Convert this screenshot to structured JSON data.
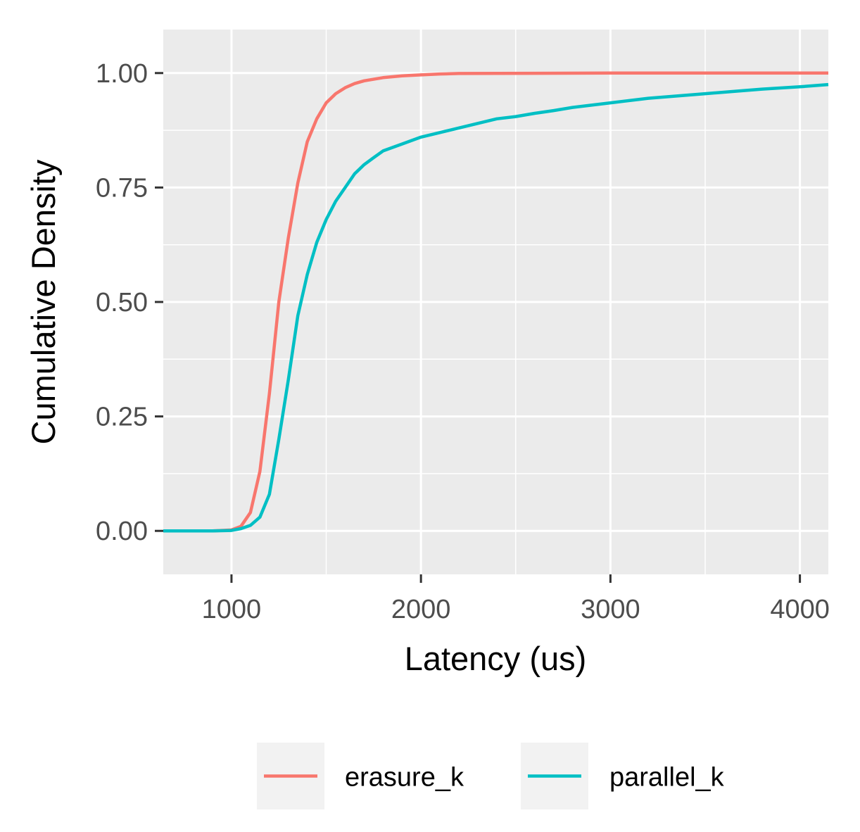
{
  "chart_data": {
    "type": "line",
    "title": "",
    "xlabel": "Latency (us)",
    "ylabel": "Cumulative Density",
    "xlim": [
      640,
      4150
    ],
    "ylim": [
      -0.095,
      1.095
    ],
    "x_ticks": [
      1000,
      2000,
      3000,
      4000
    ],
    "x_tick_labels": [
      "1000",
      "2000",
      "3000",
      "4000"
    ],
    "y_ticks": [
      0,
      0.25,
      0.5,
      0.75,
      1.0
    ],
    "y_tick_labels": [
      "0.00",
      "0.25",
      "0.50",
      "0.75",
      "1.00"
    ],
    "grid": true,
    "legend_position": "bottom",
    "colors": {
      "panel_background": "#ebebeb",
      "grid": "#ffffff",
      "tick_mark": "#333333"
    },
    "series": [
      {
        "name": "erasure_k",
        "color": "#f8766d",
        "x": [
          640,
          900,
          1000,
          1050,
          1100,
          1150,
          1200,
          1250,
          1300,
          1350,
          1400,
          1450,
          1500,
          1550,
          1600,
          1650,
          1700,
          1800,
          1900,
          2000,
          2100,
          2200,
          3000,
          4150
        ],
        "y": [
          0.0,
          0.0,
          0.002,
          0.01,
          0.04,
          0.13,
          0.3,
          0.5,
          0.64,
          0.76,
          0.85,
          0.9,
          0.935,
          0.955,
          0.968,
          0.977,
          0.983,
          0.99,
          0.994,
          0.996,
          0.998,
          0.999,
          1.0,
          1.0
        ]
      },
      {
        "name": "parallel_k",
        "color": "#00bfc4",
        "x": [
          640,
          900,
          1000,
          1050,
          1100,
          1150,
          1200,
          1250,
          1300,
          1350,
          1400,
          1450,
          1500,
          1550,
          1600,
          1650,
          1700,
          1750,
          1800,
          1900,
          2000,
          2100,
          2200,
          2300,
          2400,
          2500,
          2600,
          2700,
          2800,
          3000,
          3200,
          3500,
          3800,
          4000,
          4150
        ],
        "y": [
          0.0,
          0.0,
          0.001,
          0.005,
          0.012,
          0.03,
          0.08,
          0.2,
          0.33,
          0.47,
          0.56,
          0.63,
          0.68,
          0.72,
          0.75,
          0.78,
          0.8,
          0.815,
          0.83,
          0.845,
          0.86,
          0.87,
          0.88,
          0.89,
          0.9,
          0.905,
          0.912,
          0.918,
          0.925,
          0.935,
          0.945,
          0.955,
          0.965,
          0.97,
          0.975
        ]
      }
    ]
  }
}
